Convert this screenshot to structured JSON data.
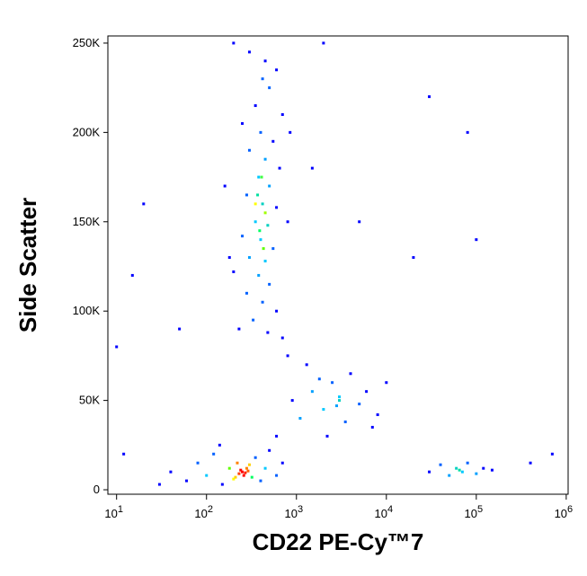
{
  "chart_data": {
    "type": "scatter",
    "x_label": "CD22 PE-Cy™7",
    "y_label": "Side Scatter",
    "xscale": "log",
    "xlim": [
      8,
      1050000
    ],
    "ylim": [
      -2500,
      254000
    ],
    "xticks": [
      {
        "value": 10,
        "label": "10",
        "exponent": "1"
      },
      {
        "value": 100,
        "label": "10",
        "exponent": "2"
      },
      {
        "value": 1000,
        "label": "10",
        "exponent": "3"
      },
      {
        "value": 10000,
        "label": "10",
        "exponent": "4"
      },
      {
        "value": 100000,
        "label": "10",
        "exponent": "5"
      },
      {
        "value": 1000000,
        "label": "10",
        "exponent": "6"
      }
    ],
    "yticks": [
      0,
      {
        "value": 50000,
        "label": "50K"
      },
      {
        "value": 100000,
        "label": "100K"
      },
      {
        "value": 150000,
        "label": "150K"
      },
      {
        "value": 200000,
        "label": "200K"
      },
      {
        "value": 250000,
        "label": "250K"
      }
    ],
    "x": [
      200,
      300,
      450,
      600,
      500,
      350,
      250,
      700,
      400,
      550,
      300,
      450,
      650,
      380,
      500,
      280,
      420,
      600,
      350,
      480,
      250,
      400,
      550,
      300,
      450,
      200,
      380,
      500,
      280,
      420,
      600,
      330,
      230,
      480,
      700,
      180,
      800,
      160,
      850,
      420,
      350,
      450,
      390,
      430,
      370,
      410,
      60,
      80,
      100,
      120,
      150,
      180,
      200,
      220,
      250,
      260,
      280,
      230,
      300,
      320,
      350,
      400,
      450,
      500,
      600,
      700,
      40,
      30,
      140,
      240,
      270,
      210,
      290,
      1100,
      1500,
      2000,
      2500,
      3000,
      3500,
      4000,
      5000,
      6000,
      8000,
      1300,
      2200,
      3000,
      2800,
      1800,
      7000,
      10000,
      900,
      30000,
      40000,
      50000,
      60000,
      70000,
      80000,
      100000,
      120000,
      150000,
      65000,
      12,
      15,
      20,
      10,
      1500,
      5000,
      20000,
      80000,
      100000,
      30000,
      400000,
      700000,
      50,
      2000,
      600,
      800
    ],
    "values": [
      250000,
      245000,
      240000,
      235000,
      225000,
      215000,
      205000,
      210000,
      200000,
      195000,
      190000,
      185000,
      180000,
      175000,
      170000,
      165000,
      160000,
      158000,
      150000,
      148000,
      142000,
      140000,
      135000,
      130000,
      128000,
      122000,
      120000,
      115000,
      110000,
      105000,
      100000,
      95000,
      90000,
      88000,
      85000,
      130000,
      150000,
      170000,
      200000,
      230000,
      160000,
      155000,
      145000,
      135000,
      165000,
      175000,
      5000,
      15000,
      8000,
      20000,
      3000,
      12000,
      6000,
      15000,
      10000,
      8000,
      12000,
      9000,
      14000,
      7000,
      18000,
      5000,
      12000,
      22000,
      8000,
      15000,
      10000,
      3000,
      25000,
      11000,
      9500,
      7000,
      10500,
      40000,
      55000,
      45000,
      60000,
      50000,
      38000,
      65000,
      48000,
      55000,
      42000,
      70000,
      30000,
      52000,
      47000,
      62000,
      35000,
      60000,
      50000,
      10000,
      14000,
      8000,
      12000,
      10000,
      15000,
      9000,
      12000,
      11000,
      11000,
      20000,
      120000,
      160000,
      80000,
      180000,
      150000,
      130000,
      200000,
      140000,
      220000,
      15000,
      20000,
      90000,
      250000,
      30000,
      75000
    ],
    "colors": [
      "#0000ff",
      "#0000ff",
      "#0000ff",
      "#0000ff",
      "#0060ff",
      "#0000ff",
      "#0000ff",
      "#0000ff",
      "#0060ff",
      "#0000ff",
      "#0060ff",
      "#00a0ff",
      "#0000ff",
      "#00c8ff",
      "#00a0ff",
      "#0060ff",
      "#00d0c0",
      "#0000ff",
      "#00c8ff",
      "#00d0c0",
      "#0060ff",
      "#00c8ff",
      "#0060ff",
      "#00a0ff",
      "#00c8ff",
      "#0000ff",
      "#00a0ff",
      "#0060ff",
      "#0060ff",
      "#0060ff",
      "#0000ff",
      "#0060ff",
      "#0000ff",
      "#0000ff",
      "#0000ff",
      "#0000ff",
      "#0000ff",
      "#0000ff",
      "#0000ff",
      "#0060ff",
      "#ffff00",
      "#a0ff00",
      "#00ff60",
      "#60ff00",
      "#00e0a0",
      "#40ff40",
      "#0000ff",
      "#0060ff",
      "#00c8ff",
      "#0060ff",
      "#0000ff",
      "#60ff00",
      "#ffff00",
      "#ff8000",
      "#ff0000",
      "#ff0000",
      "#ff8000",
      "#ff4000",
      "#ffd000",
      "#00ff60",
      "#0060ff",
      "#0060ff",
      "#00c8ff",
      "#0000ff",
      "#0060ff",
      "#0000ff",
      "#0000ff",
      "#0000ff",
      "#0000ff",
      "#ff0000",
      "#ff2000",
      "#ffd000",
      "#ff6000",
      "#00a0ff",
      "#00a0ff",
      "#00c8ff",
      "#0060ff",
      "#00d0c0",
      "#0060ff",
      "#0000ff",
      "#0060ff",
      "#0000ff",
      "#0000ff",
      "#0000ff",
      "#0000ff",
      "#00c8ff",
      "#00a0ff",
      "#0060ff",
      "#0000ff",
      "#0000ff",
      "#0000ff",
      "#0000ff",
      "#0060ff",
      "#00a0ff",
      "#00d0c0",
      "#00c8ff",
      "#0060ff",
      "#00a0ff",
      "#0000ff",
      "#0000ff",
      "#00e0a0",
      "#0000ff",
      "#0000ff",
      "#0000ff",
      "#0000ff",
      "#0000ff",
      "#0000ff",
      "#0000ff",
      "#0000ff",
      "#0000ff",
      "#0000ff",
      "#0000ff",
      "#0000ff",
      "#0000ff",
      "#0000ff",
      "#0000ff",
      "#0000ff"
    ]
  }
}
